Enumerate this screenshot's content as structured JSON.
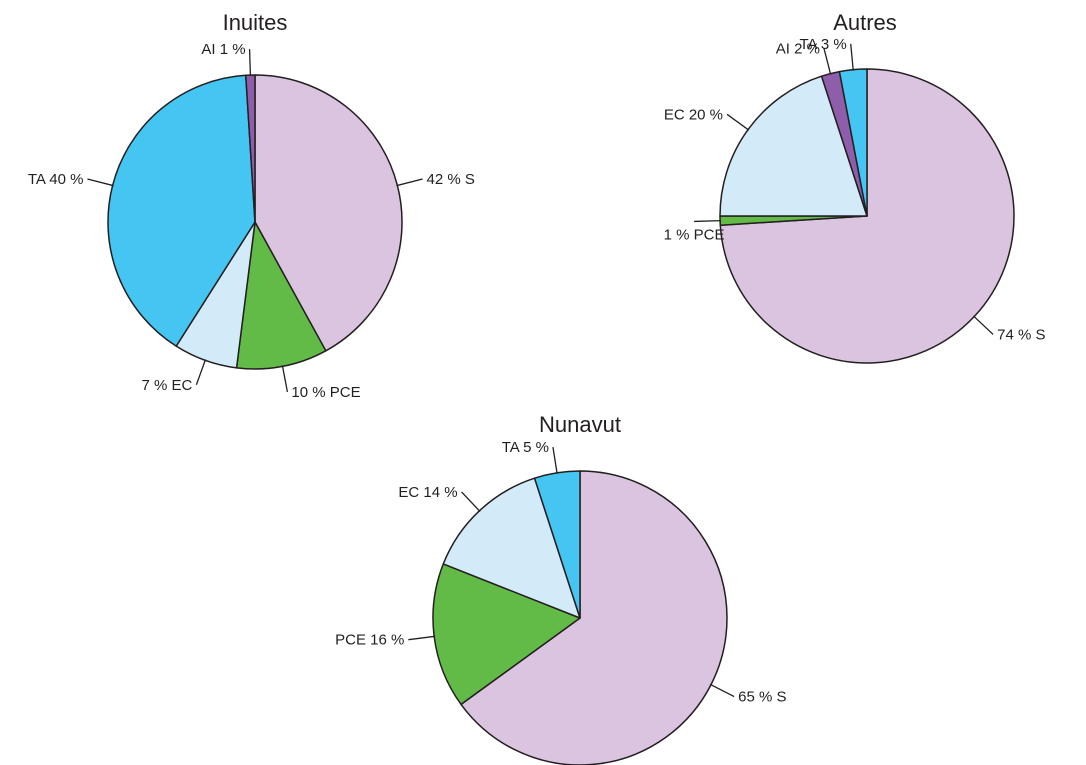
{
  "chart_data": [
    {
      "type": "pie",
      "title": "Inuites",
      "slices": [
        {
          "label": "42 % S",
          "value": 42,
          "color": "#dbc4df"
        },
        {
          "label": "10 % PCE",
          "value": 10,
          "color": "#62bb46"
        },
        {
          "label": "7 % EC",
          "value": 7,
          "color": "#d3ebf8"
        },
        {
          "label": "TA 40 %",
          "value": 40,
          "color": "#45c5f2"
        },
        {
          "label": "AI 1 %",
          "value": 1,
          "color": "#8e5eab"
        }
      ]
    },
    {
      "type": "pie",
      "title": "Autres",
      "slices": [
        {
          "label": "74 % S",
          "value": 74,
          "color": "#dbc4df"
        },
        {
          "label": "1 % PCE",
          "value": 1,
          "color": "#62bb46"
        },
        {
          "label": "EC 20 %",
          "value": 20,
          "color": "#d3ebf8"
        },
        {
          "label": "AI 2 %",
          "value": 2,
          "color": "#8e5eab"
        },
        {
          "label": "TA 3 %",
          "value": 3,
          "color": "#45c5f2"
        }
      ]
    },
    {
      "type": "pie",
      "title": "Nunavut",
      "slices": [
        {
          "label": "65 % S",
          "value": 65,
          "color": "#dbc4df"
        },
        {
          "label": "PCE 16 %",
          "value": 16,
          "color": "#62bb46"
        },
        {
          "label": "EC 14 %",
          "value": 14,
          "color": "#d3ebf8"
        },
        {
          "label": "TA 5 %",
          "value": 5,
          "color": "#45c5f2"
        }
      ]
    }
  ]
}
